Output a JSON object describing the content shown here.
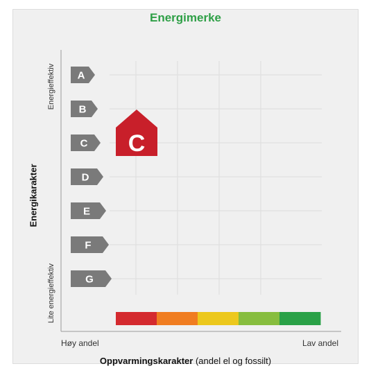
{
  "chart_data": {
    "type": "energy-label",
    "title": "Energimerke",
    "energy_classes": [
      "A",
      "B",
      "C",
      "D",
      "E",
      "F",
      "G"
    ],
    "rated_class": "C",
    "heating_scale_colors": [
      "#d42a2f",
      "#f07d21",
      "#ecc81d",
      "#87bd3e",
      "#2aa147"
    ],
    "ylabel": "Energikarakter",
    "y_top_label": "Energieffektiv",
    "y_bottom_label": "Lite energieffektiv",
    "xlabel_bold": "Oppvarmingskarakter",
    "xlabel_rest": " (andel el og fossilt)",
    "x_left_label": "Høy andel",
    "x_right_label": "Lav andel",
    "grid": true
  },
  "colors": {
    "title": "#2e9f46",
    "badge": "#c81f2a",
    "tag": "#7a7a7a"
  }
}
